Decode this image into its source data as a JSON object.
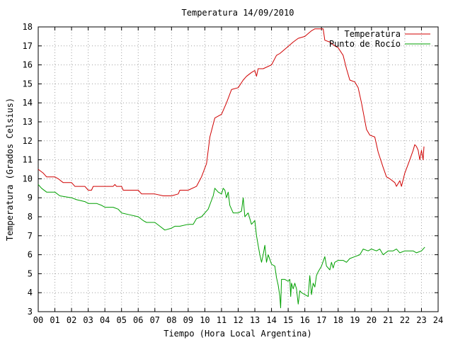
{
  "chart_data": {
    "type": "line",
    "title": "Temperatura 14/09/2010",
    "xlabel": "Tiempo (Hora Local Argentina)",
    "ylabel": "Temperatura (Grados Celsius)",
    "xlim": [
      0,
      24
    ],
    "ylim": [
      3,
      18
    ],
    "x_ticks": [
      "00",
      "01",
      "02",
      "03",
      "04",
      "05",
      "06",
      "07",
      "08",
      "09",
      "10",
      "11",
      "12",
      "13",
      "14",
      "15",
      "16",
      "17",
      "18",
      "19",
      "20",
      "21",
      "22",
      "23",
      "24"
    ],
    "y_ticks": [
      "3",
      "4",
      "5",
      "6",
      "7",
      "8",
      "9",
      "10",
      "11",
      "12",
      "13",
      "14",
      "15",
      "16",
      "17",
      "18"
    ],
    "grid": true,
    "legend_position": "top-right",
    "series": [
      {
        "name": "Temperatura",
        "color": "#d00000",
        "points": [
          [
            0.0,
            10.5
          ],
          [
            0.3,
            10.3
          ],
          [
            0.5,
            10.1
          ],
          [
            1.0,
            10.1
          ],
          [
            1.2,
            10.0
          ],
          [
            1.5,
            9.8
          ],
          [
            2.0,
            9.8
          ],
          [
            2.2,
            9.6
          ],
          [
            2.8,
            9.6
          ],
          [
            3.0,
            9.4
          ],
          [
            3.2,
            9.4
          ],
          [
            3.3,
            9.6
          ],
          [
            4.0,
            9.6
          ],
          [
            4.5,
            9.6
          ],
          [
            4.6,
            9.7
          ],
          [
            4.7,
            9.6
          ],
          [
            5.0,
            9.6
          ],
          [
            5.1,
            9.4
          ],
          [
            6.0,
            9.4
          ],
          [
            6.2,
            9.2
          ],
          [
            7.0,
            9.2
          ],
          [
            7.5,
            9.1
          ],
          [
            8.0,
            9.1
          ],
          [
            8.4,
            9.2
          ],
          [
            8.5,
            9.4
          ],
          [
            9.0,
            9.4
          ],
          [
            9.5,
            9.6
          ],
          [
            9.8,
            10.1
          ],
          [
            10.1,
            10.8
          ],
          [
            10.3,
            12.2
          ],
          [
            10.6,
            13.2
          ],
          [
            11.0,
            13.4
          ],
          [
            11.3,
            14.0
          ],
          [
            11.6,
            14.7
          ],
          [
            12.0,
            14.8
          ],
          [
            12.3,
            15.2
          ],
          [
            12.5,
            15.4
          ],
          [
            12.8,
            15.6
          ],
          [
            13.0,
            15.7
          ],
          [
            13.1,
            15.4
          ],
          [
            13.2,
            15.8
          ],
          [
            13.5,
            15.8
          ],
          [
            14.0,
            16.0
          ],
          [
            14.3,
            16.5
          ],
          [
            14.5,
            16.6
          ],
          [
            14.9,
            16.9
          ],
          [
            15.3,
            17.2
          ],
          [
            15.6,
            17.4
          ],
          [
            16.0,
            17.5
          ],
          [
            16.4,
            17.8
          ],
          [
            16.6,
            17.9
          ],
          [
            17.1,
            17.9
          ],
          [
            17.2,
            17.3
          ],
          [
            17.5,
            17.2
          ],
          [
            17.8,
            17.0
          ],
          [
            18.0,
            16.9
          ],
          [
            18.3,
            16.5
          ],
          [
            18.5,
            15.8
          ],
          [
            18.7,
            15.2
          ],
          [
            19.0,
            15.1
          ],
          [
            19.2,
            14.8
          ],
          [
            19.4,
            14.0
          ],
          [
            19.7,
            12.6
          ],
          [
            19.9,
            12.3
          ],
          [
            20.2,
            12.2
          ],
          [
            20.4,
            11.4
          ],
          [
            20.7,
            10.6
          ],
          [
            20.9,
            10.1
          ],
          [
            21.1,
            10.0
          ],
          [
            21.4,
            9.8
          ],
          [
            21.5,
            9.6
          ],
          [
            21.7,
            9.9
          ],
          [
            21.8,
            9.6
          ],
          [
            22.0,
            10.3
          ],
          [
            22.3,
            11.0
          ],
          [
            22.5,
            11.5
          ],
          [
            22.6,
            11.8
          ],
          [
            22.7,
            11.7
          ],
          [
            22.8,
            11.5
          ],
          [
            22.9,
            11.0
          ],
          [
            23.0,
            11.5
          ],
          [
            23.1,
            11.0
          ],
          [
            23.15,
            11.7
          ]
        ]
      },
      {
        "name": "Punto de Rocío",
        "color": "#00a000",
        "points": [
          [
            0.0,
            9.7
          ],
          [
            0.2,
            9.5
          ],
          [
            0.5,
            9.3
          ],
          [
            1.0,
            9.3
          ],
          [
            1.3,
            9.1
          ],
          [
            2.0,
            9.0
          ],
          [
            2.3,
            8.9
          ],
          [
            2.8,
            8.8
          ],
          [
            3.0,
            8.7
          ],
          [
            3.5,
            8.7
          ],
          [
            3.8,
            8.6
          ],
          [
            4.0,
            8.5
          ],
          [
            4.5,
            8.5
          ],
          [
            4.8,
            8.4
          ],
          [
            5.0,
            8.2
          ],
          [
            5.5,
            8.1
          ],
          [
            6.0,
            8.0
          ],
          [
            6.3,
            7.8
          ],
          [
            6.5,
            7.7
          ],
          [
            7.0,
            7.7
          ],
          [
            7.3,
            7.5
          ],
          [
            7.6,
            7.3
          ],
          [
            8.0,
            7.4
          ],
          [
            8.2,
            7.5
          ],
          [
            8.5,
            7.5
          ],
          [
            9.0,
            7.6
          ],
          [
            9.3,
            7.6
          ],
          [
            9.5,
            7.9
          ],
          [
            9.8,
            8.0
          ],
          [
            10.2,
            8.4
          ],
          [
            10.5,
            9.1
          ],
          [
            10.6,
            9.5
          ],
          [
            10.8,
            9.3
          ],
          [
            11.0,
            9.2
          ],
          [
            11.1,
            9.5
          ],
          [
            11.2,
            9.4
          ],
          [
            11.3,
            9.0
          ],
          [
            11.4,
            9.3
          ],
          [
            11.5,
            8.6
          ],
          [
            11.7,
            8.2
          ],
          [
            12.0,
            8.2
          ],
          [
            12.2,
            8.3
          ],
          [
            12.3,
            9.0
          ],
          [
            12.4,
            8.0
          ],
          [
            12.6,
            8.2
          ],
          [
            12.8,
            7.6
          ],
          [
            13.0,
            7.8
          ],
          [
            13.1,
            7.0
          ],
          [
            13.2,
            6.5
          ],
          [
            13.3,
            6.0
          ],
          [
            13.4,
            5.6
          ],
          [
            13.5,
            6.0
          ],
          [
            13.6,
            6.5
          ],
          [
            13.7,
            5.6
          ],
          [
            13.8,
            6.0
          ],
          [
            14.0,
            5.5
          ],
          [
            14.2,
            5.4
          ],
          [
            14.3,
            4.8
          ],
          [
            14.4,
            4.4
          ],
          [
            14.5,
            3.8
          ],
          [
            14.55,
            3.2
          ],
          [
            14.6,
            4.7
          ],
          [
            14.8,
            4.7
          ],
          [
            15.0,
            4.6
          ],
          [
            15.1,
            4.7
          ],
          [
            15.15,
            3.8
          ],
          [
            15.2,
            4.5
          ],
          [
            15.3,
            4.2
          ],
          [
            15.4,
            4.5
          ],
          [
            15.5,
            4.2
          ],
          [
            15.6,
            3.4
          ],
          [
            15.7,
            4.1
          ],
          [
            15.8,
            4.0
          ],
          [
            16.0,
            3.9
          ],
          [
            16.2,
            3.8
          ],
          [
            16.3,
            4.9
          ],
          [
            16.4,
            3.9
          ],
          [
            16.5,
            4.5
          ],
          [
            16.6,
            4.3
          ],
          [
            16.7,
            4.9
          ],
          [
            16.8,
            5.1
          ],
          [
            17.0,
            5.4
          ],
          [
            17.2,
            5.9
          ],
          [
            17.3,
            5.4
          ],
          [
            17.5,
            5.2
          ],
          [
            17.6,
            5.6
          ],
          [
            17.7,
            5.3
          ],
          [
            17.8,
            5.6
          ],
          [
            18.0,
            5.7
          ],
          [
            18.3,
            5.7
          ],
          [
            18.5,
            5.6
          ],
          [
            18.7,
            5.8
          ],
          [
            19.0,
            5.9
          ],
          [
            19.3,
            6.0
          ],
          [
            19.5,
            6.3
          ],
          [
            19.8,
            6.2
          ],
          [
            20.0,
            6.3
          ],
          [
            20.3,
            6.2
          ],
          [
            20.5,
            6.3
          ],
          [
            20.7,
            6.0
          ],
          [
            21.0,
            6.2
          ],
          [
            21.3,
            6.2
          ],
          [
            21.5,
            6.3
          ],
          [
            21.7,
            6.1
          ],
          [
            22.0,
            6.2
          ],
          [
            22.5,
            6.2
          ],
          [
            22.7,
            6.1
          ],
          [
            23.0,
            6.2
          ],
          [
            23.2,
            6.4
          ]
        ]
      }
    ]
  }
}
